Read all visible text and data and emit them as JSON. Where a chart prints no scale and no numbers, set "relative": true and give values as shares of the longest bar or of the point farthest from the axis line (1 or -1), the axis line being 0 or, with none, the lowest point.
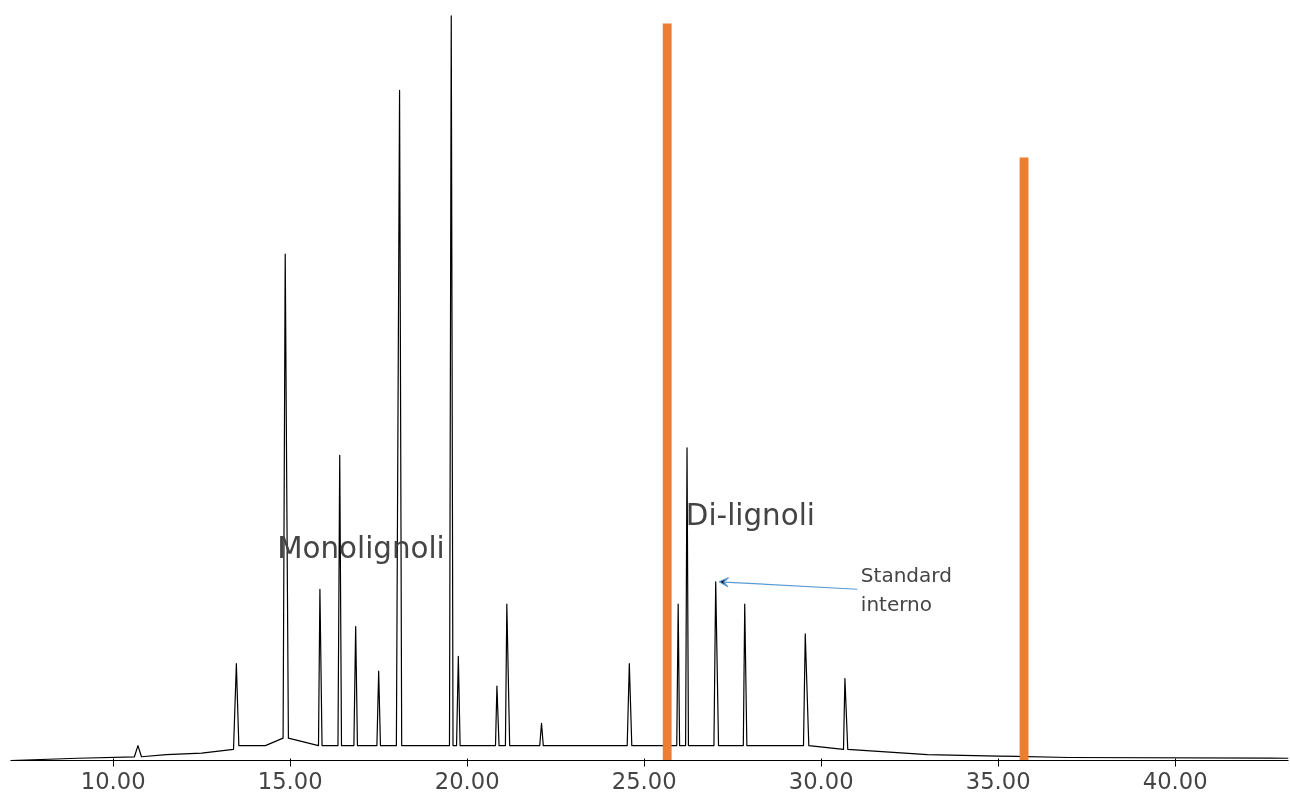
{
  "chart_data": {
    "type": "line",
    "relative": true,
    "grid": false,
    "tick_labels": "x",
    "xlim": [
      7.1,
      43.2
    ],
    "xticks": [
      {
        "value": 10,
        "label": "10.00"
      },
      {
        "value": 15,
        "label": "15.00"
      },
      {
        "value": 20,
        "label": "20.00"
      },
      {
        "value": 25,
        "label": "25.00"
      },
      {
        "value": 30,
        "label": "30.00"
      },
      {
        "value": 35,
        "label": "35.00"
      },
      {
        "value": 40,
        "label": "40.00"
      }
    ],
    "annotations": [
      "Monolignoli",
      "Di-lignoli",
      {
        "text": "Standard interno",
        "x": 27.02,
        "y": 0.24
      }
    ],
    "series": [
      {
        "color": "#000000",
        "x": [
          7.1,
          9.0,
          10.6,
          10.7,
          10.8,
          11.5,
          12.5,
          13.4,
          13.48,
          13.55,
          14.3,
          14.8,
          14.86,
          14.95,
          15.8,
          15.84,
          15.9,
          16.35,
          16.4,
          16.45,
          16.8,
          16.85,
          16.9,
          17.45,
          17.5,
          17.55,
          18.0,
          18.09,
          18.15,
          19.5,
          19.55,
          19.6,
          19.7,
          19.75,
          19.8,
          20.8,
          20.84,
          20.9,
          21.08,
          21.12,
          21.2,
          22.05,
          22.1,
          22.15,
          23.5,
          24.52,
          24.58,
          24.65,
          25.0,
          25.92,
          25.96,
          26.0,
          26.17,
          26.21,
          26.25,
          26.97,
          27.02,
          27.1,
          27.8,
          27.84,
          27.9,
          29.5,
          29.55,
          29.65,
          30.63,
          30.67,
          30.75,
          33.0,
          35.0,
          37.0,
          43.2
        ],
        "values": [
          0.0,
          0.003,
          0.005,
          0.02,
          0.005,
          0.008,
          0.01,
          0.015,
          0.13,
          0.02,
          0.02,
          0.03,
          0.68,
          0.03,
          0.02,
          0.23,
          0.02,
          0.02,
          0.41,
          0.02,
          0.02,
          0.18,
          0.02,
          0.02,
          0.12,
          0.02,
          0.02,
          0.9,
          0.02,
          0.02,
          1.0,
          0.02,
          0.02,
          0.14,
          0.02,
          0.02,
          0.1,
          0.02,
          0.02,
          0.21,
          0.02,
          0.02,
          0.05,
          0.02,
          0.02,
          0.02,
          0.13,
          0.02,
          0.02,
          0.02,
          0.21,
          0.02,
          0.02,
          0.42,
          0.02,
          0.02,
          0.24,
          0.02,
          0.02,
          0.21,
          0.02,
          0.02,
          0.17,
          0.02,
          0.015,
          0.11,
          0.015,
          0.008,
          0.006,
          0.004,
          0.003
        ]
      },
      {
        "type": "bar",
        "color": "#ed7d31",
        "x": [
          25.65,
          35.73
        ],
        "values": [
          0.99,
          0.81
        ]
      }
    ]
  }
}
